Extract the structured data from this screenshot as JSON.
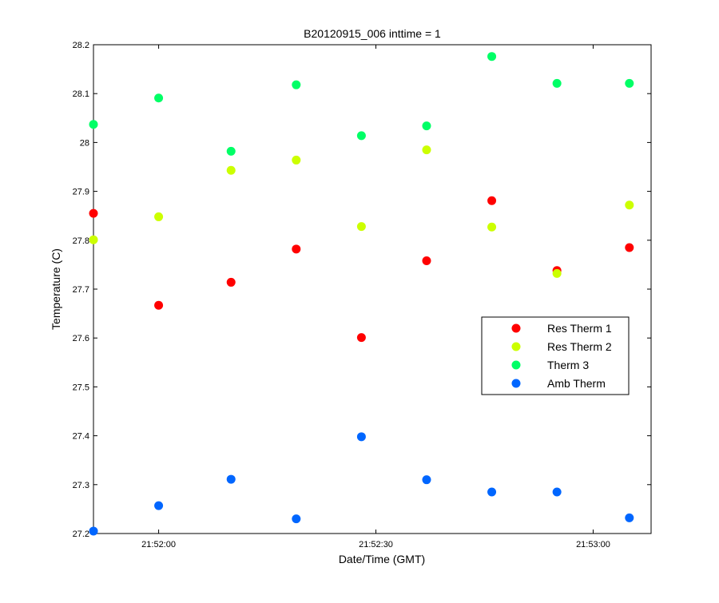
{
  "chart_data": {
    "type": "scatter",
    "title": "B20120915_006 inttime = 1",
    "xlabel": "Date/Time (GMT)",
    "ylabel": "Temperature (C)",
    "xlim": [
      "21:51:51",
      "21:53:08"
    ],
    "ylim": [
      27.2,
      28.2
    ],
    "grid": false,
    "legend_position": "right",
    "x_ticks": [
      {
        "value": "21:52:00",
        "label": "21:52:00"
      },
      {
        "value": "21:52:30",
        "label": "21:52:30"
      },
      {
        "value": "21:53:00",
        "label": "21:53:00"
      }
    ],
    "y_ticks": [
      27.2,
      27.3,
      27.4,
      27.5,
      27.6,
      27.7,
      27.8,
      27.9,
      28.0,
      28.1,
      28.2
    ],
    "y_tick_labels": [
      "27.2",
      "27.3",
      "27.4",
      "27.5",
      "27.6",
      "27.7",
      "27.8",
      "27.9",
      "28",
      "28.1",
      "28.2"
    ],
    "x": [
      "21:51:51",
      "21:52:00",
      "21:52:10",
      "21:52:19",
      "21:52:28",
      "21:52:37",
      "21:52:46",
      "21:52:55",
      "21:53:05"
    ],
    "series": [
      {
        "name": "Res Therm 1",
        "color": "#ff0000",
        "values": [
          27.855,
          27.667,
          27.714,
          27.782,
          27.601,
          27.758,
          27.881,
          27.738,
          27.785
        ]
      },
      {
        "name": "Res Therm 2",
        "color": "#ccff00",
        "values": [
          27.801,
          27.848,
          27.943,
          27.964,
          27.828,
          27.985,
          27.827,
          27.732,
          27.872
        ]
      },
      {
        "name": "Therm 3",
        "color": "#00ff66",
        "values": [
          28.037,
          28.091,
          27.982,
          28.118,
          28.014,
          28.034,
          28.176,
          28.121,
          28.121
        ]
      },
      {
        "name": "Amb Therm",
        "color": "#0066ff",
        "values": [
          27.205,
          27.257,
          27.311,
          27.23,
          27.398,
          27.31,
          27.285,
          27.285,
          27.232
        ]
      }
    ]
  }
}
